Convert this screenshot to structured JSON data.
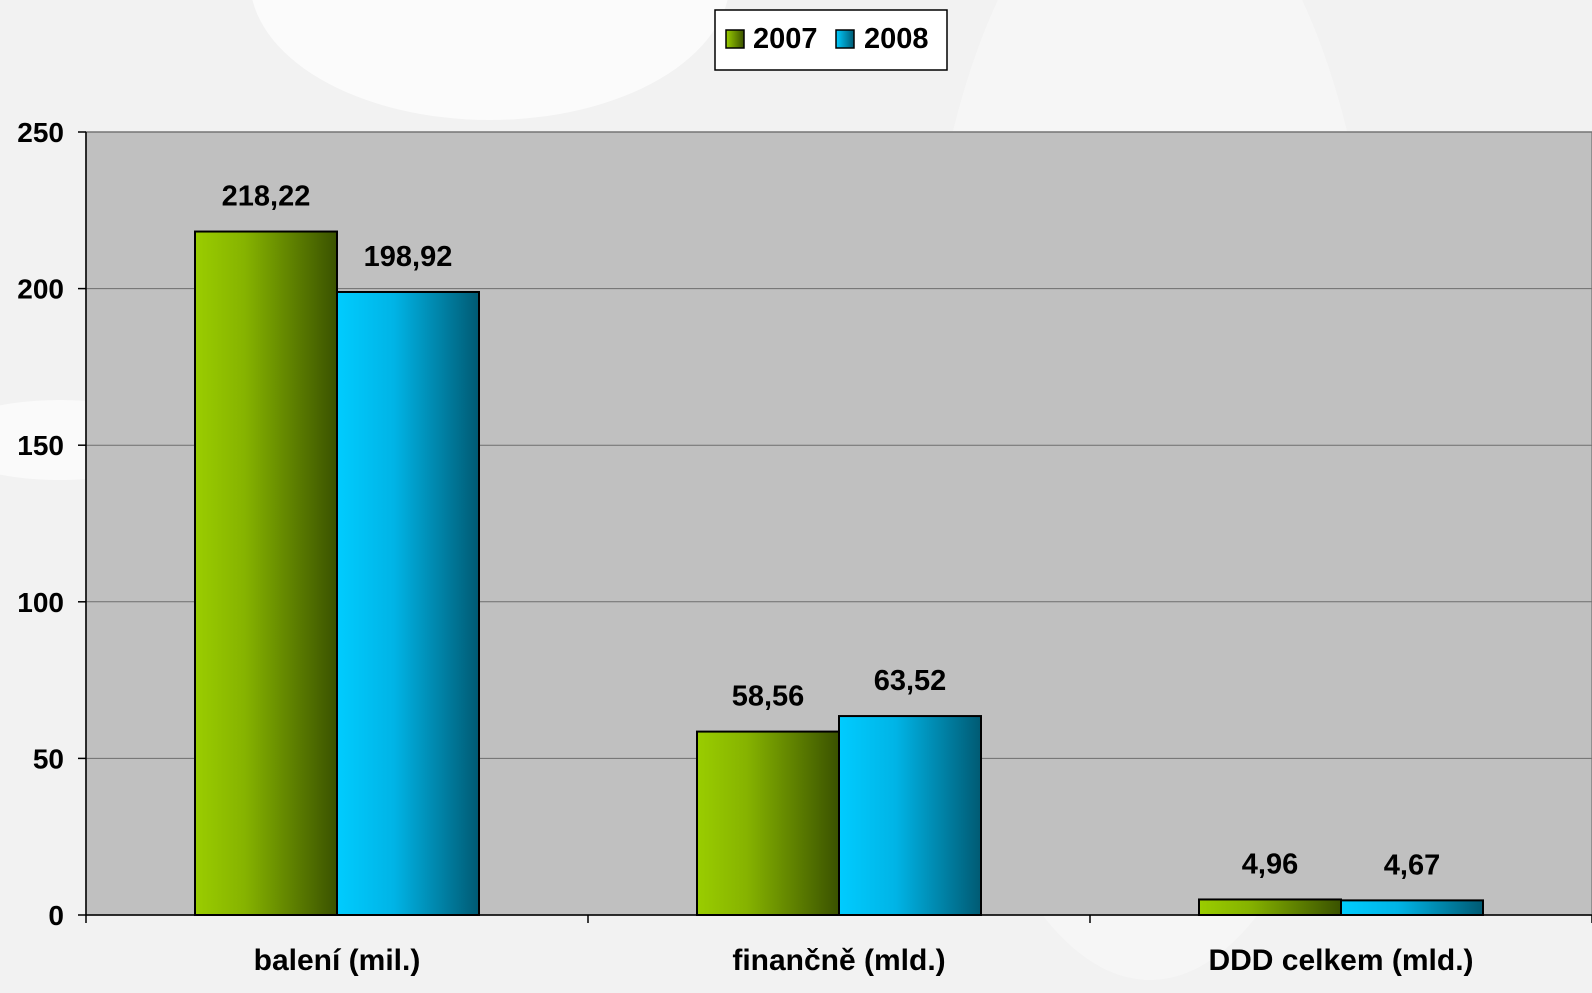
{
  "chart_data": {
    "type": "bar",
    "categories": [
      "balení (mil.)",
      "finančně (mld.)",
      "DDD celkem (mld.)"
    ],
    "series": [
      {
        "name": "2007",
        "values": [
          218.22,
          58.56,
          4.96
        ],
        "labels": [
          "218,22",
          "58,56",
          "4,96"
        ],
        "color": "#8fbf00"
      },
      {
        "name": "2008",
        "values": [
          198.92,
          63.52,
          4.67
        ],
        "labels": [
          "198,92",
          "63,52",
          "4,67"
        ],
        "color": "#00c8ff"
      }
    ],
    "yticks": [
      "0",
      "50",
      "100",
      "150",
      "200",
      "250"
    ],
    "ylim": [
      0,
      250
    ],
    "grid": true,
    "legend_position": "top-center",
    "plot_background": "#c0c0c0"
  }
}
